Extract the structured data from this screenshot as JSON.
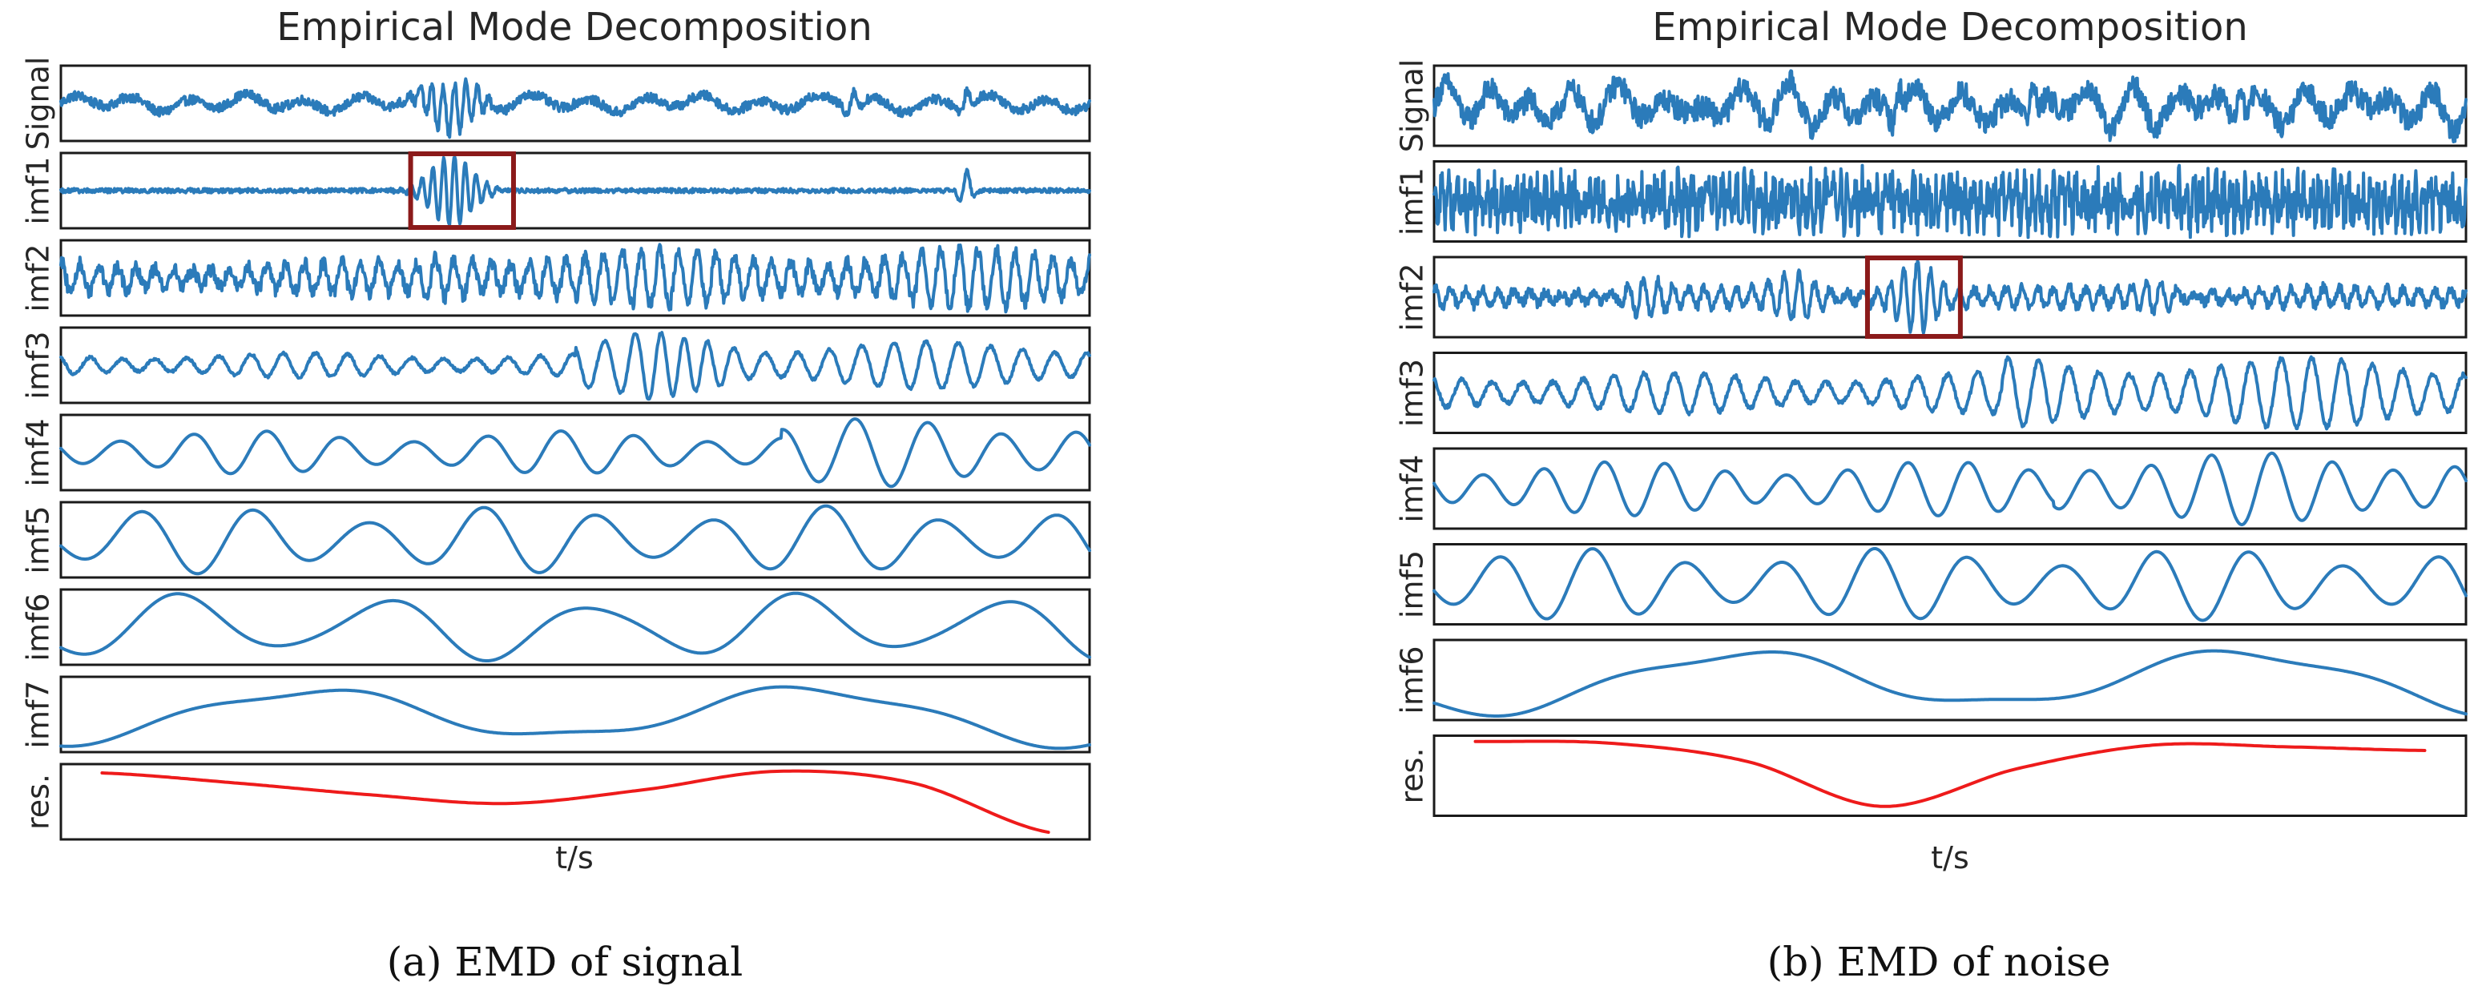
{
  "chart_data": [
    {
      "type": "line",
      "panel": "a",
      "title": "Empirical Mode Decomposition",
      "xlabel": "t/s",
      "caption": "(a)  EMD of signal",
      "series_color": "#2b7bba",
      "residual_color": "#ee1b1b",
      "highlight_color": "#8b1a1a",
      "highlight": {
        "row": "imf1",
        "t_start": 0.34,
        "t_end": 0.44
      },
      "rows": [
        {
          "label": "Signal",
          "kind": "composite",
          "noise": 0.18,
          "burst": {
            "center": 0.38,
            "width": 0.03,
            "amp": 1.0,
            "freq": 90
          },
          "events": [
            0.77,
            0.88
          ]
        },
        {
          "label": "imf1",
          "kind": "burst",
          "noise": 0.06,
          "burst": {
            "center": 0.38,
            "width": 0.028,
            "amp": 0.95,
            "freq": 95
          },
          "events": [
            0.88
          ]
        },
        {
          "label": "imf2",
          "kind": "oscillation",
          "noise": 0.08,
          "freq": 55,
          "amp": 0.18,
          "active_from": 0.35,
          "active_amp": 0.32
        },
        {
          "label": "imf3",
          "kind": "oscillation",
          "noise": 0.02,
          "freq": 32,
          "amp": 0.18,
          "active_from": 0.5,
          "active_amp": 0.35,
          "burst": {
            "center": 0.6,
            "width": 0.035,
            "amp": 0.7,
            "freq": 40
          }
        },
        {
          "label": "imf4",
          "kind": "oscillation",
          "noise": 0.0,
          "freq": 14,
          "amp": 0.22,
          "active_from": 0.7,
          "active_amp": 0.35
        },
        {
          "label": "imf5",
          "kind": "oscillation",
          "noise": 0.0,
          "freq": 9,
          "amp": 0.18
        },
        {
          "label": "imf6",
          "kind": "oscillation",
          "noise": 0.0,
          "freq": 5,
          "amp": 0.12
        },
        {
          "label": "imf7",
          "kind": "oscillation",
          "noise": 0.0,
          "freq": 2,
          "amp": 0.05
        },
        {
          "label": "res.",
          "kind": "residual",
          "t_range": [
            0.04,
            0.96
          ],
          "values": [
            0.85,
            0.55,
            0.2,
            -0.05,
            0.35,
            0.9,
            0.55,
            -0.9
          ]
        }
      ]
    },
    {
      "type": "line",
      "panel": "b",
      "title": "Empirical Mode Decomposition",
      "xlabel": "t/s",
      "caption": "(b)  EMD of noise",
      "series_color": "#2b7bba",
      "residual_color": "#ee1b1b",
      "highlight_color": "#8b1a1a",
      "highlight": {
        "row": "imf2",
        "t_start": 0.42,
        "t_end": 0.51
      },
      "rows": [
        {
          "label": "Signal",
          "kind": "composite",
          "noise": 0.35,
          "freq": 24,
          "amp": 0.45,
          "events": [
            0.45,
            0.58,
            0.78
          ]
        },
        {
          "label": "imf1",
          "kind": "noise",
          "noise": 0.55,
          "freq": 140,
          "amp": 0.3
        },
        {
          "label": "imf2",
          "kind": "burst",
          "noise": 0.12,
          "freq": 65,
          "amp": 0.22,
          "burst": {
            "center": 0.465,
            "width": 0.025,
            "amp": 0.9,
            "freq": 75
          },
          "groups": [
            0.2,
            0.35,
            0.7
          ]
        },
        {
          "label": "imf3",
          "kind": "oscillation",
          "noise": 0.05,
          "freq": 34,
          "amp": 0.45,
          "active_from": 0.55,
          "active_amp": 0.8
        },
        {
          "label": "imf4",
          "kind": "oscillation",
          "noise": 0.0,
          "freq": 17,
          "amp": 0.6,
          "active_from": 0.6,
          "active_amp": 0.8
        },
        {
          "label": "imf5",
          "kind": "oscillation",
          "noise": 0.0,
          "freq": 11,
          "amp": 0.4
        },
        {
          "label": "imf6",
          "kind": "oscillation",
          "noise": 0.0,
          "freq": 2,
          "amp": 0.08
        },
        {
          "label": "res.",
          "kind": "residual",
          "t_range": [
            0.04,
            0.96
          ],
          "values": [
            0.95,
            0.9,
            0.4,
            -0.85,
            0.2,
            0.85,
            0.8,
            0.7
          ]
        }
      ]
    }
  ]
}
